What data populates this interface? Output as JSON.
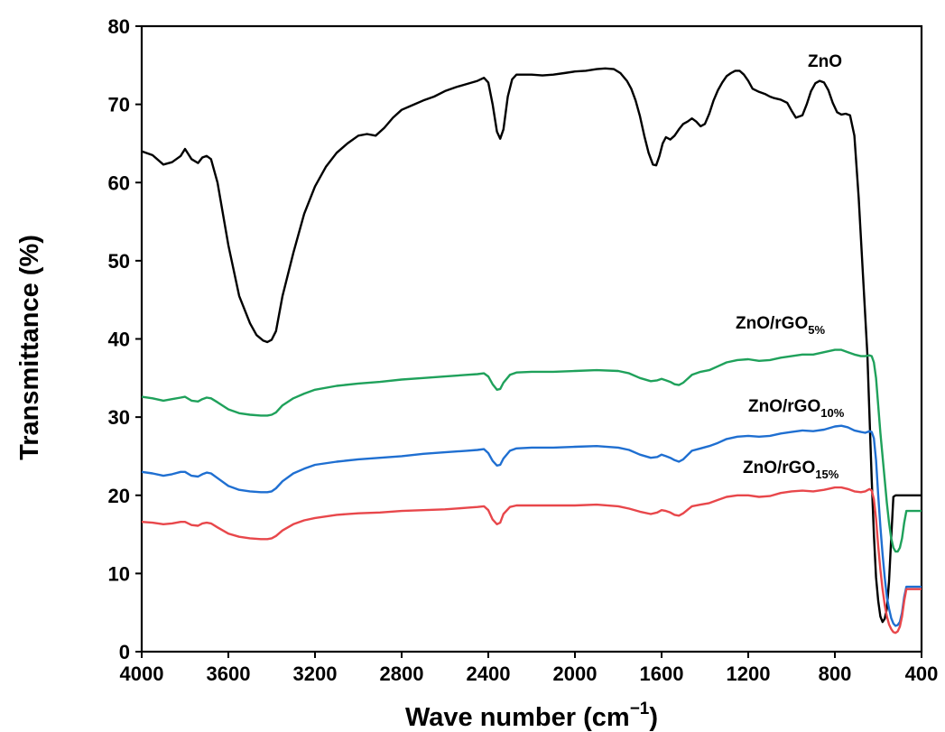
{
  "chart_data": {
    "type": "line",
    "xlabel": "Wave number (cm",
    "xlabel_sup": "−1",
    "xlabel_end": ")",
    "ylabel": "Transmittance (%)",
    "xlim": [
      4000,
      400
    ],
    "ylim": [
      0,
      80
    ],
    "x_reversed": true,
    "grid": false,
    "legend": "none",
    "x_ticks": [
      4000,
      3600,
      3200,
      2800,
      2400,
      2000,
      1600,
      1200,
      800,
      400
    ],
    "y_ticks": [
      0,
      10,
      20,
      30,
      40,
      50,
      60,
      70,
      80
    ],
    "series": [
      {
        "name": "ZnO",
        "label_base": "ZnO",
        "label_sub": "",
        "color": "#000000",
        "x": [
          4000,
          3950,
          3900,
          3860,
          3820,
          3800,
          3770,
          3740,
          3720,
          3700,
          3680,
          3650,
          3600,
          3550,
          3500,
          3470,
          3440,
          3420,
          3400,
          3380,
          3350,
          3300,
          3250,
          3200,
          3150,
          3100,
          3050,
          3000,
          2960,
          2920,
          2880,
          2840,
          2800,
          2750,
          2700,
          2650,
          2600,
          2550,
          2500,
          2450,
          2420,
          2400,
          2380,
          2360,
          2345,
          2330,
          2310,
          2290,
          2270,
          2250,
          2200,
          2150,
          2100,
          2050,
          2000,
          1950,
          1900,
          1860,
          1820,
          1790,
          1760,
          1740,
          1720,
          1700,
          1680,
          1660,
          1640,
          1625,
          1610,
          1595,
          1580,
          1560,
          1540,
          1520,
          1500,
          1480,
          1460,
          1440,
          1420,
          1400,
          1380,
          1360,
          1340,
          1320,
          1300,
          1280,
          1260,
          1240,
          1220,
          1200,
          1180,
          1150,
          1120,
          1100,
          1080,
          1050,
          1020,
          1000,
          980,
          950,
          930,
          910,
          890,
          870,
          850,
          830,
          810,
          790,
          770,
          750,
          730,
          710,
          690,
          670,
          650,
          640,
          630,
          620,
          610,
          600,
          590,
          580,
          570,
          560,
          550,
          540,
          530,
          520,
          510,
          500,
          490,
          480,
          470,
          460,
          450,
          440,
          430,
          420,
          410,
          400
        ],
        "y": [
          64.0,
          63.5,
          62.3,
          62.6,
          63.4,
          64.3,
          63.0,
          62.5,
          63.2,
          63.4,
          63.0,
          60.0,
          52.0,
          45.5,
          42.0,
          40.5,
          39.8,
          39.6,
          39.9,
          41.0,
          45.5,
          51.0,
          56.0,
          59.5,
          62.0,
          63.8,
          65.0,
          66.0,
          66.2,
          66.0,
          67.0,
          68.3,
          69.3,
          69.9,
          70.5,
          71.0,
          71.7,
          72.2,
          72.6,
          73.0,
          73.4,
          72.8,
          70.0,
          66.5,
          65.6,
          66.8,
          71.0,
          73.2,
          73.8,
          73.8,
          73.8,
          73.7,
          73.8,
          74.0,
          74.2,
          74.3,
          74.5,
          74.6,
          74.5,
          74.0,
          73.0,
          72.0,
          70.5,
          68.5,
          66.0,
          63.8,
          62.3,
          62.2,
          63.4,
          65.0,
          65.8,
          65.5,
          66.0,
          66.8,
          67.5,
          67.8,
          68.2,
          67.8,
          67.2,
          67.5,
          68.8,
          70.5,
          71.8,
          72.8,
          73.6,
          74.0,
          74.3,
          74.3,
          73.8,
          73.0,
          72.0,
          71.6,
          71.3,
          71.0,
          70.8,
          70.6,
          70.2,
          69.2,
          68.3,
          68.6,
          70.0,
          71.7,
          72.7,
          73.0,
          72.8,
          71.8,
          70.2,
          69.0,
          68.7,
          68.8,
          68.6,
          66.0,
          58.0,
          48.0,
          38.0,
          30.0,
          22.0,
          15.0,
          9.5,
          6.5,
          4.5,
          3.8,
          4.2,
          5.5,
          9.0,
          14.5,
          19.8,
          20.0,
          20.0,
          20.0,
          20.0,
          20.0,
          20.0,
          20.0,
          20.0,
          20.0,
          20.0,
          20.0,
          20.0,
          20.0
        ]
      },
      {
        "name": "ZnO/rGO5%",
        "label_base": "ZnO/rGO",
        "label_sub": "5%",
        "color": "#1fa15b",
        "x": [
          4000,
          3950,
          3900,
          3860,
          3820,
          3800,
          3770,
          3740,
          3720,
          3700,
          3680,
          3650,
          3600,
          3550,
          3500,
          3450,
          3420,
          3400,
          3380,
          3350,
          3300,
          3250,
          3200,
          3100,
          3000,
          2900,
          2800,
          2700,
          2600,
          2500,
          2450,
          2420,
          2400,
          2380,
          2360,
          2345,
          2330,
          2300,
          2270,
          2200,
          2100,
          2000,
          1900,
          1800,
          1750,
          1700,
          1650,
          1620,
          1600,
          1580,
          1560,
          1540,
          1520,
          1500,
          1460,
          1420,
          1380,
          1340,
          1300,
          1250,
          1200,
          1150,
          1100,
          1050,
          1000,
          950,
          900,
          850,
          800,
          770,
          740,
          710,
          680,
          660,
          640,
          630,
          620,
          610,
          600,
          590,
          580,
          570,
          560,
          550,
          540,
          530,
          520,
          510,
          500,
          490,
          480,
          470,
          460,
          450,
          440,
          430,
          420,
          410,
          400
        ],
        "y": [
          32.6,
          32.4,
          32.1,
          32.3,
          32.5,
          32.6,
          32.1,
          32.0,
          32.3,
          32.5,
          32.4,
          31.9,
          31.0,
          30.5,
          30.3,
          30.2,
          30.2,
          30.3,
          30.6,
          31.5,
          32.4,
          33.0,
          33.5,
          34.0,
          34.3,
          34.5,
          34.8,
          35.0,
          35.2,
          35.4,
          35.5,
          35.6,
          35.2,
          34.2,
          33.5,
          33.6,
          34.4,
          35.4,
          35.7,
          35.8,
          35.8,
          35.9,
          36.0,
          35.9,
          35.6,
          35.0,
          34.6,
          34.7,
          34.9,
          34.7,
          34.5,
          34.2,
          34.1,
          34.4,
          35.4,
          35.8,
          36.0,
          36.5,
          37.0,
          37.3,
          37.4,
          37.2,
          37.3,
          37.6,
          37.8,
          38.0,
          38.0,
          38.3,
          38.6,
          38.6,
          38.3,
          38.0,
          37.8,
          37.8,
          37.9,
          37.8,
          37.0,
          35.0,
          31.5,
          28.0,
          25.0,
          22.0,
          19.0,
          16.5,
          14.5,
          13.3,
          12.8,
          12.8,
          13.3,
          14.5,
          16.5,
          18.0,
          18.0,
          18.0,
          18.0,
          18.0,
          18.0,
          18.0,
          18.0
        ]
      },
      {
        "name": "ZnO/rGO10%",
        "label_base": "ZnO/rGO",
        "label_sub": "10%",
        "color": "#1f6fd1",
        "x": [
          4000,
          3950,
          3900,
          3860,
          3820,
          3800,
          3770,
          3740,
          3720,
          3700,
          3680,
          3650,
          3600,
          3550,
          3500,
          3450,
          3420,
          3400,
          3380,
          3350,
          3300,
          3250,
          3200,
          3100,
          3000,
          2900,
          2800,
          2700,
          2600,
          2500,
          2450,
          2420,
          2400,
          2380,
          2360,
          2345,
          2330,
          2300,
          2270,
          2200,
          2100,
          2000,
          1900,
          1800,
          1750,
          1700,
          1650,
          1620,
          1600,
          1580,
          1560,
          1540,
          1520,
          1500,
          1460,
          1420,
          1380,
          1340,
          1300,
          1250,
          1200,
          1150,
          1100,
          1050,
          1000,
          950,
          900,
          850,
          800,
          770,
          740,
          710,
          680,
          660,
          640,
          630,
          620,
          610,
          600,
          590,
          580,
          570,
          560,
          550,
          540,
          530,
          520,
          510,
          500,
          490,
          480,
          470,
          460,
          450,
          440,
          430,
          420,
          410,
          400
        ],
        "y": [
          23.0,
          22.8,
          22.5,
          22.7,
          23.0,
          23.0,
          22.5,
          22.4,
          22.7,
          22.9,
          22.8,
          22.2,
          21.2,
          20.7,
          20.5,
          20.4,
          20.4,
          20.5,
          20.9,
          21.8,
          22.8,
          23.4,
          23.9,
          24.3,
          24.6,
          24.8,
          25.0,
          25.3,
          25.5,
          25.7,
          25.8,
          25.9,
          25.4,
          24.4,
          23.8,
          23.9,
          24.7,
          25.7,
          26.0,
          26.1,
          26.1,
          26.2,
          26.3,
          26.1,
          25.8,
          25.2,
          24.8,
          24.9,
          25.2,
          25.0,
          24.8,
          24.5,
          24.3,
          24.6,
          25.7,
          26.0,
          26.3,
          26.7,
          27.2,
          27.5,
          27.6,
          27.5,
          27.6,
          27.9,
          28.1,
          28.3,
          28.2,
          28.4,
          28.8,
          28.9,
          28.7,
          28.3,
          28.1,
          28.0,
          28.2,
          28.1,
          27.3,
          24.5,
          20.0,
          16.0,
          12.5,
          9.5,
          7.0,
          5.5,
          4.3,
          3.6,
          3.3,
          3.4,
          3.8,
          5.0,
          7.0,
          8.3,
          8.3,
          8.3,
          8.3,
          8.3,
          8.3,
          8.3,
          8.3
        ]
      },
      {
        "name": "ZnO/rGO15%",
        "label_base": "ZnO/rGO",
        "label_sub": "15%",
        "color": "#e8474b",
        "x": [
          4000,
          3950,
          3900,
          3860,
          3820,
          3800,
          3770,
          3740,
          3720,
          3700,
          3680,
          3650,
          3600,
          3550,
          3500,
          3450,
          3420,
          3400,
          3380,
          3350,
          3300,
          3250,
          3200,
          3100,
          3000,
          2900,
          2800,
          2700,
          2600,
          2500,
          2450,
          2420,
          2400,
          2380,
          2360,
          2345,
          2330,
          2300,
          2270,
          2200,
          2100,
          2000,
          1900,
          1800,
          1750,
          1700,
          1650,
          1620,
          1600,
          1580,
          1560,
          1540,
          1520,
          1500,
          1460,
          1420,
          1380,
          1340,
          1300,
          1250,
          1200,
          1150,
          1100,
          1050,
          1000,
          950,
          900,
          850,
          800,
          770,
          740,
          710,
          680,
          660,
          640,
          630,
          620,
          610,
          600,
          590,
          580,
          570,
          560,
          550,
          540,
          530,
          520,
          510,
          500,
          490,
          480,
          470,
          460,
          450,
          440,
          430,
          420,
          410,
          400
        ],
        "y": [
          16.6,
          16.5,
          16.3,
          16.4,
          16.6,
          16.6,
          16.2,
          16.1,
          16.4,
          16.5,
          16.4,
          15.9,
          15.1,
          14.7,
          14.5,
          14.4,
          14.4,
          14.5,
          14.8,
          15.5,
          16.3,
          16.8,
          17.1,
          17.5,
          17.7,
          17.8,
          18.0,
          18.1,
          18.2,
          18.4,
          18.5,
          18.6,
          18.1,
          16.9,
          16.3,
          16.5,
          17.6,
          18.5,
          18.7,
          18.7,
          18.7,
          18.7,
          18.8,
          18.6,
          18.3,
          17.9,
          17.6,
          17.8,
          18.1,
          18.0,
          17.8,
          17.5,
          17.4,
          17.7,
          18.6,
          18.8,
          19.0,
          19.4,
          19.8,
          20.0,
          20.0,
          19.8,
          19.9,
          20.3,
          20.5,
          20.6,
          20.5,
          20.7,
          21.0,
          21.0,
          20.8,
          20.5,
          20.4,
          20.5,
          20.8,
          20.6,
          19.5,
          17.0,
          13.5,
          10.5,
          8.0,
          6.0,
          4.5,
          3.5,
          2.9,
          2.5,
          2.4,
          2.6,
          3.2,
          4.5,
          6.5,
          8.0,
          8.0,
          8.0,
          8.0,
          8.0,
          8.0,
          8.0,
          8.0
        ]
      }
    ]
  }
}
